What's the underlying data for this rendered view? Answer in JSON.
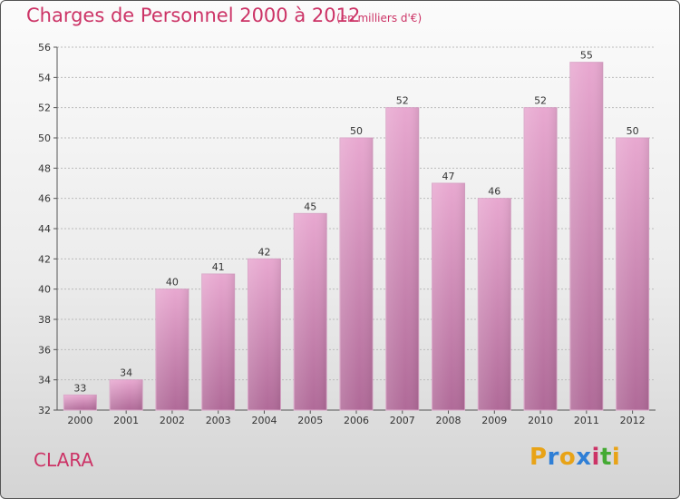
{
  "header": {
    "title": "Charges de Personnel 2000 à 2012",
    "subtitle": "(en milliers d'€)"
  },
  "footer": {
    "commune": "CLARA",
    "logo_letters": [
      "P",
      "r",
      "o",
      "x",
      "i",
      "t",
      "i"
    ],
    "logo_colors": [
      "#e8a317",
      "#2f7fd6",
      "#e8a317",
      "#2f7fd6",
      "#cc3366",
      "#44aa33",
      "#e8a317"
    ]
  },
  "colors": {
    "bar_top": "#e8a8d0",
    "bar_bottom": "#b06a98",
    "accent": "#cc3366"
  },
  "chart_data": {
    "type": "bar",
    "categories": [
      "2000",
      "2001",
      "2002",
      "2003",
      "2004",
      "2005",
      "2006",
      "2007",
      "2008",
      "2009",
      "2010",
      "2011",
      "2012"
    ],
    "values": [
      33,
      34,
      40,
      41,
      42,
      45,
      50,
      52,
      47,
      46,
      52,
      55,
      50
    ],
    "title": "Charges de Personnel 2000 à 2012",
    "subtitle": "(en milliers d'€)",
    "xlabel": "",
    "ylabel": "",
    "ylim": [
      32,
      56
    ],
    "yticks": [
      32,
      34,
      36,
      38,
      40,
      42,
      44,
      46,
      48,
      50,
      52,
      54,
      56
    ],
    "grid": true
  }
}
